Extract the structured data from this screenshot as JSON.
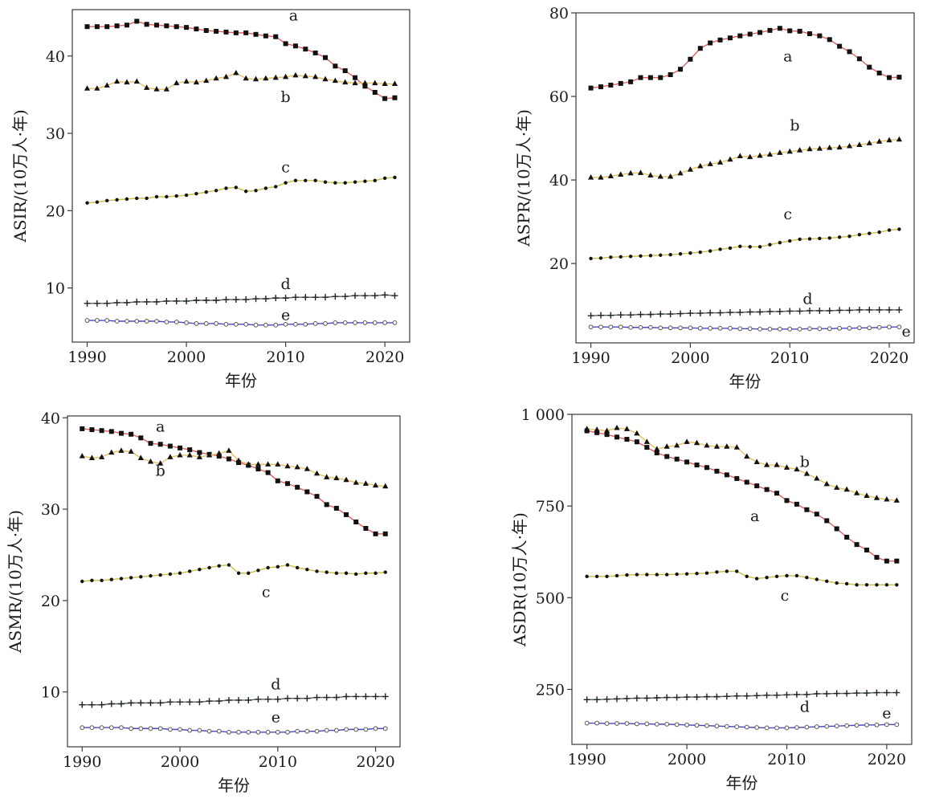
{
  "chart_data": [
    {
      "type": "line",
      "xlabel": "年份",
      "ylabel": "ASIR/(10万人·年)",
      "xlim": [
        1988.5,
        2022.5
      ],
      "ylim": [
        3,
        46
      ],
      "xticks": [
        1990,
        2000,
        2010,
        2020
      ],
      "xtick_labels": [
        "1990",
        "2000",
        "2010",
        "2020"
      ],
      "yticks": [
        10,
        20,
        30,
        40
      ],
      "ytick_labels": [
        "10",
        "20",
        "30",
        "40"
      ],
      "grid": false,
      "x": [
        1990,
        1991,
        1992,
        1993,
        1994,
        1995,
        1996,
        1997,
        1998,
        1999,
        2000,
        2001,
        2002,
        2003,
        2004,
        2005,
        2006,
        2007,
        2008,
        2009,
        2010,
        2011,
        2012,
        2013,
        2014,
        2015,
        2016,
        2017,
        2018,
        2019,
        2020,
        2021
      ],
      "series": [
        {
          "name": "a",
          "color": "#e06060",
          "marker": "square",
          "values": [
            43.8,
            43.8,
            43.8,
            43.9,
            44.0,
            44.5,
            44.1,
            44.0,
            43.9,
            43.8,
            43.7,
            43.5,
            43.3,
            43.2,
            43.1,
            43.0,
            43.0,
            42.8,
            42.6,
            42.5,
            41.6,
            41.3,
            40.9,
            40.4,
            39.8,
            38.7,
            38.1,
            37.2,
            36.1,
            35.3,
            34.5,
            34.6
          ],
          "label_at": [
            2010.8,
            45.2
          ]
        },
        {
          "name": "b",
          "color": "#e8c060",
          "marker": "triangle",
          "values": [
            35.8,
            35.8,
            36.2,
            36.7,
            36.6,
            36.7,
            35.9,
            35.7,
            35.7,
            36.5,
            36.7,
            36.6,
            36.8,
            37.1,
            37.3,
            37.8,
            37.1,
            37.0,
            37.1,
            37.2,
            37.3,
            37.5,
            37.4,
            37.3,
            37.0,
            36.8,
            36.6,
            36.5,
            36.5,
            36.5,
            36.4,
            36.4
          ],
          "label_at": [
            2010.0,
            34.7
          ]
        },
        {
          "name": "c",
          "color": "#c8c040",
          "marker": "dot",
          "values": [
            21.0,
            21.1,
            21.3,
            21.4,
            21.5,
            21.6,
            21.6,
            21.8,
            21.8,
            21.9,
            22.0,
            22.2,
            22.4,
            22.6,
            22.9,
            23.0,
            22.5,
            22.6,
            22.9,
            23.1,
            23.6,
            23.9,
            23.9,
            23.9,
            23.7,
            23.6,
            23.6,
            23.7,
            23.8,
            23.9,
            24.2,
            24.3
          ],
          "label_at": [
            2010.0,
            25.6
          ]
        },
        {
          "name": "d",
          "color": "#506c50",
          "marker": "plus",
          "values": [
            8.0,
            8.0,
            8.0,
            8.1,
            8.1,
            8.2,
            8.2,
            8.2,
            8.3,
            8.3,
            8.3,
            8.4,
            8.4,
            8.4,
            8.5,
            8.5,
            8.5,
            8.6,
            8.6,
            8.7,
            8.7,
            8.8,
            8.8,
            8.8,
            8.8,
            8.9,
            8.9,
            9.0,
            9.0,
            9.0,
            9.1,
            9.0
          ],
          "label_at": [
            2010.0,
            10.5
          ]
        },
        {
          "name": "e",
          "color": "#4848c8",
          "marker": "circle",
          "values": [
            5.8,
            5.8,
            5.8,
            5.7,
            5.7,
            5.7,
            5.7,
            5.7,
            5.6,
            5.6,
            5.5,
            5.4,
            5.4,
            5.4,
            5.3,
            5.3,
            5.3,
            5.2,
            5.2,
            5.2,
            5.3,
            5.3,
            5.3,
            5.4,
            5.4,
            5.5,
            5.5,
            5.5,
            5.5,
            5.5,
            5.5,
            5.5
          ],
          "label_at": [
            2010.0,
            6.5
          ]
        }
      ]
    },
    {
      "type": "line",
      "xlabel": "年份",
      "ylabel": "ASPR/(10万人·年)",
      "xlim": [
        1988.5,
        2022.5
      ],
      "ylim": [
        1,
        80
      ],
      "xticks": [
        1990,
        2000,
        2010,
        2020
      ],
      "xtick_labels": [
        "1990",
        "2000",
        "2010",
        "2020"
      ],
      "yticks": [
        20,
        40,
        60,
        80
      ],
      "ytick_labels": [
        "20",
        "40",
        "60",
        "80"
      ],
      "grid": false,
      "x": [
        1990,
        1991,
        1992,
        1993,
        1994,
        1995,
        1996,
        1997,
        1998,
        1999,
        2000,
        2001,
        2002,
        2003,
        2004,
        2005,
        2006,
        2007,
        2008,
        2009,
        2010,
        2011,
        2012,
        2013,
        2014,
        2015,
        2016,
        2017,
        2018,
        2019,
        2020,
        2021
      ],
      "series": [
        {
          "name": "a",
          "color": "#e06060",
          "marker": "square",
          "values": [
            62.0,
            62.3,
            62.7,
            63.1,
            63.5,
            64.5,
            64.5,
            64.5,
            65.2,
            66.5,
            68.9,
            71.5,
            72.8,
            73.5,
            74.0,
            74.5,
            74.9,
            75.3,
            75.8,
            76.3,
            75.7,
            75.6,
            75.0,
            74.5,
            73.6,
            72.0,
            70.7,
            69.0,
            67.0,
            65.6,
            64.5,
            64.6
          ],
          "label_at": [
            2009.8,
            69.5
          ]
        },
        {
          "name": "b",
          "color": "#e8c060",
          "marker": "triangle",
          "values": [
            40.6,
            40.6,
            40.9,
            41.3,
            41.6,
            41.7,
            41.1,
            40.8,
            40.8,
            41.6,
            42.5,
            43.3,
            43.8,
            44.2,
            44.9,
            45.7,
            45.5,
            45.8,
            46.1,
            46.5,
            46.8,
            47.1,
            47.4,
            47.5,
            47.7,
            47.8,
            48.1,
            48.4,
            48.8,
            49.2,
            49.5,
            49.7
          ],
          "label_at": [
            2010.5,
            53.0
          ]
        },
        {
          "name": "c",
          "color": "#c8c040",
          "marker": "dot",
          "values": [
            21.2,
            21.3,
            21.5,
            21.6,
            21.7,
            21.8,
            21.9,
            22.0,
            22.1,
            22.3,
            22.5,
            22.7,
            23.0,
            23.4,
            23.7,
            24.1,
            24.0,
            24.0,
            24.5,
            25.0,
            25.4,
            25.8,
            25.9,
            26.0,
            26.1,
            26.3,
            26.5,
            26.9,
            27.2,
            27.5,
            28.0,
            28.2
          ],
          "label_at": [
            2009.8,
            31.8
          ]
        },
        {
          "name": "d",
          "color": "#506c50",
          "marker": "plus",
          "values": [
            7.5,
            7.6,
            7.6,
            7.7,
            7.7,
            7.8,
            7.8,
            7.9,
            7.9,
            8.0,
            8.1,
            8.1,
            8.2,
            8.2,
            8.3,
            8.3,
            8.4,
            8.4,
            8.5,
            8.5,
            8.6,
            8.6,
            8.7,
            8.7,
            8.7,
            8.8,
            8.8,
            8.9,
            8.9,
            8.9,
            8.9,
            8.9
          ],
          "label_at": [
            2011.8,
            11.5
          ]
        },
        {
          "name": "e",
          "color": "#4848c8",
          "marker": "circle",
          "values": [
            4.8,
            4.8,
            4.8,
            4.8,
            4.7,
            4.7,
            4.7,
            4.6,
            4.6,
            4.6,
            4.6,
            4.5,
            4.5,
            4.5,
            4.5,
            4.4,
            4.4,
            4.3,
            4.3,
            4.3,
            4.3,
            4.3,
            4.4,
            4.4,
            4.4,
            4.5,
            4.5,
            4.6,
            4.6,
            4.7,
            4.8,
            4.8
          ],
          "label_at": [
            2021.7,
            3.7
          ]
        }
      ]
    },
    {
      "type": "line",
      "xlabel": "年份",
      "ylabel": "ASMR/(10万人·年)",
      "xlim": [
        1988.5,
        2022.5
      ],
      "ylim": [
        4,
        40.2
      ],
      "xticks": [
        1990,
        2000,
        2010,
        2020
      ],
      "xtick_labels": [
        "1990",
        "2000",
        "2010",
        "2020"
      ],
      "yticks": [
        10,
        20,
        30,
        40
      ],
      "ytick_labels": [
        "10",
        "20",
        "30",
        "40"
      ],
      "grid": false,
      "x": [
        1990,
        1991,
        1992,
        1993,
        1994,
        1995,
        1996,
        1997,
        1998,
        1999,
        2000,
        2001,
        2002,
        2003,
        2004,
        2005,
        2006,
        2007,
        2008,
        2009,
        2010,
        2011,
        2012,
        2013,
        2014,
        2015,
        2016,
        2017,
        2018,
        2019,
        2020,
        2021
      ],
      "series": [
        {
          "name": "a",
          "color": "#e06060",
          "marker": "square",
          "values": [
            38.8,
            38.7,
            38.6,
            38.5,
            38.3,
            38.2,
            37.8,
            37.2,
            37.1,
            36.9,
            36.7,
            36.5,
            36.2,
            36.0,
            35.8,
            35.5,
            35.1,
            34.8,
            34.4,
            34.0,
            33.1,
            32.8,
            32.4,
            31.9,
            31.4,
            30.5,
            30.1,
            29.4,
            28.6,
            27.9,
            27.3,
            27.3
          ],
          "label_at": [
            1998.0,
            39.0
          ]
        },
        {
          "name": "b",
          "color": "#e8c060",
          "marker": "triangle",
          "values": [
            35.8,
            35.6,
            35.7,
            36.2,
            36.4,
            36.3,
            35.6,
            35.2,
            35.0,
            35.7,
            35.9,
            35.9,
            35.7,
            35.9,
            36.1,
            36.4,
            35.3,
            34.9,
            34.9,
            34.9,
            34.9,
            34.7,
            34.6,
            34.4,
            33.9,
            33.5,
            33.4,
            33.2,
            32.9,
            32.8,
            32.6,
            32.5
          ],
          "label_at": [
            1998.0,
            34.2
          ]
        },
        {
          "name": "c",
          "color": "#c8c040",
          "marker": "dot",
          "values": [
            22.1,
            22.2,
            22.2,
            22.3,
            22.4,
            22.5,
            22.6,
            22.7,
            22.8,
            22.9,
            23.0,
            23.2,
            23.4,
            23.6,
            23.8,
            23.9,
            23.0,
            23.0,
            23.3,
            23.6,
            23.7,
            23.9,
            23.6,
            23.4,
            23.2,
            23.1,
            23.0,
            23.0,
            22.9,
            23.0,
            23.0,
            23.1
          ],
          "label_at": [
            2008.8,
            20.9
          ]
        },
        {
          "name": "d",
          "color": "#506c50",
          "marker": "plus",
          "values": [
            8.6,
            8.6,
            8.6,
            8.7,
            8.7,
            8.8,
            8.8,
            8.8,
            8.8,
            8.9,
            8.9,
            8.9,
            8.9,
            9.0,
            9.0,
            9.1,
            9.1,
            9.1,
            9.2,
            9.2,
            9.2,
            9.3,
            9.3,
            9.3,
            9.4,
            9.4,
            9.4,
            9.5,
            9.5,
            9.5,
            9.5,
            9.5
          ],
          "label_at": [
            2009.8,
            10.8
          ]
        },
        {
          "name": "e",
          "color": "#4848c8",
          "marker": "circle",
          "values": [
            6.1,
            6.1,
            6.1,
            6.1,
            6.1,
            6.0,
            6.0,
            6.0,
            6.0,
            5.9,
            5.9,
            5.8,
            5.8,
            5.7,
            5.7,
            5.6,
            5.6,
            5.6,
            5.6,
            5.6,
            5.6,
            5.6,
            5.7,
            5.7,
            5.7,
            5.8,
            5.8,
            5.9,
            5.9,
            5.9,
            6.0,
            6.0
          ],
          "label_at": [
            2009.8,
            7.2
          ]
        }
      ]
    },
    {
      "type": "line",
      "xlabel": "年份",
      "ylabel": "ASDR(10万人·年)",
      "xlim": [
        1988.5,
        2022.5
      ],
      "ylim": [
        100,
        1000
      ],
      "xticks": [
        1990,
        2000,
        2010,
        2020
      ],
      "xtick_labels": [
        "1990",
        "2000",
        "2010",
        "2020"
      ],
      "yticks": [
        250,
        500,
        750,
        1000
      ],
      "ytick_labels": [
        "250",
        "500",
        "750",
        "1 000"
      ],
      "grid": false,
      "x": [
        1990,
        1991,
        1992,
        1993,
        1994,
        1995,
        1996,
        1997,
        1998,
        1999,
        2000,
        2001,
        2002,
        2003,
        2004,
        2005,
        2006,
        2007,
        2008,
        2009,
        2010,
        2011,
        2012,
        2013,
        2014,
        2015,
        2016,
        2017,
        2018,
        2019,
        2020,
        2021
      ],
      "series": [
        {
          "name": "a",
          "color": "#e06060",
          "marker": "square",
          "values": [
            955,
            950,
            945,
            938,
            932,
            925,
            910,
            895,
            885,
            878,
            870,
            862,
            855,
            845,
            835,
            825,
            815,
            805,
            795,
            785,
            765,
            755,
            740,
            728,
            710,
            688,
            665,
            645,
            630,
            610,
            600,
            600
          ],
          "label_at": [
            2006.8,
            722
          ]
        },
        {
          "name": "b",
          "color": "#e8c060",
          "marker": "triangle",
          "values": [
            960,
            958,
            955,
            963,
            960,
            948,
            925,
            905,
            912,
            915,
            925,
            922,
            915,
            912,
            912,
            910,
            885,
            870,
            862,
            862,
            855,
            850,
            838,
            825,
            810,
            800,
            795,
            785,
            778,
            772,
            768,
            765
          ],
          "label_at": [
            2011.8,
            870
          ]
        },
        {
          "name": "c",
          "color": "#c8c040",
          "marker": "dot",
          "values": [
            558,
            558,
            558,
            560,
            562,
            563,
            563,
            563,
            563,
            564,
            565,
            566,
            567,
            570,
            572,
            572,
            558,
            552,
            555,
            558,
            560,
            560,
            555,
            550,
            545,
            540,
            538,
            535,
            535,
            535,
            535,
            535
          ],
          "label_at": [
            2009.8,
            505
          ]
        },
        {
          "name": "d",
          "color": "#506c50",
          "marker": "plus",
          "values": [
            222,
            222,
            223,
            224,
            225,
            226,
            226,
            227,
            228,
            228,
            229,
            229,
            230,
            230,
            231,
            232,
            232,
            233,
            234,
            234,
            235,
            236,
            236,
            238,
            238,
            239,
            239,
            240,
            240,
            241,
            241,
            241
          ],
          "label_at": [
            2011.8,
            202
          ]
        },
        {
          "name": "e",
          "color": "#4848c8",
          "marker": "circle",
          "values": [
            158,
            158,
            157,
            157,
            157,
            156,
            156,
            155,
            155,
            154,
            153,
            152,
            151,
            150,
            149,
            148,
            147,
            146,
            145,
            145,
            145,
            146,
            147,
            148,
            149,
            150,
            151,
            152,
            153,
            153,
            154,
            154
          ],
          "label_at": [
            2020.0,
            184
          ]
        }
      ]
    }
  ]
}
